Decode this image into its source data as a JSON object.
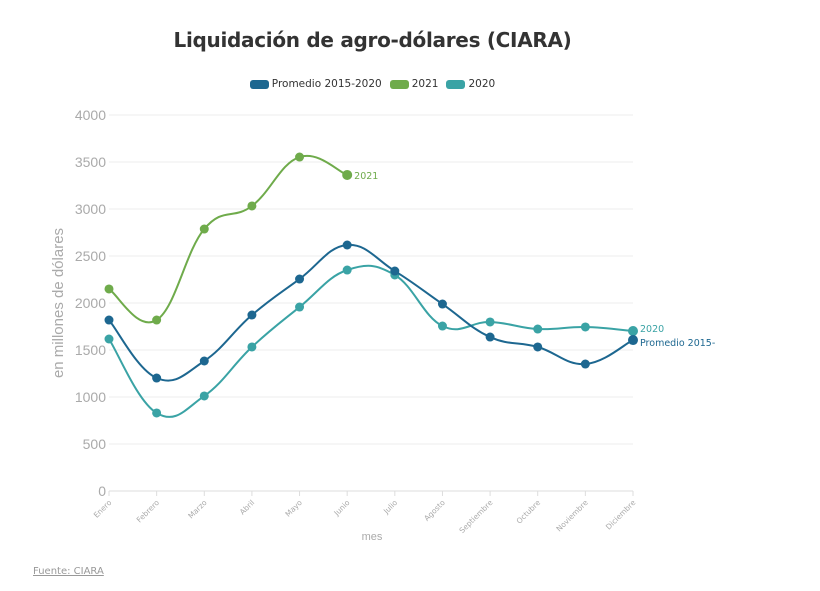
{
  "title": "Liquidación de agro-dólares (CIARA)",
  "source_label": "Fuente: CIARA",
  "chart_data": {
    "type": "line",
    "title": "Liquidación de agro-dólares (CIARA)",
    "xlabel": "mes",
    "ylabel": "en millones de dólares",
    "ylim": [
      0,
      4000
    ],
    "yticks": [
      0,
      500,
      1000,
      1500,
      2000,
      2500,
      3000,
      3500,
      4000
    ],
    "grid": true,
    "legend_position": "top-center",
    "categories": [
      "Enero",
      "Febrero",
      "Marzo",
      "Abril",
      "Mayo",
      "Junio",
      "Julio",
      "Agosto",
      "Septiembre",
      "Octubre",
      "Noviembre",
      "Diciembre"
    ],
    "series": [
      {
        "name": "Promedio 2015-2020",
        "end_label": "Promedio 2015-",
        "color": "#1d6790",
        "values": [
          1819,
          1202,
          1383,
          1872,
          2255,
          2617,
          2340,
          1989,
          1638,
          1532,
          1351,
          1606
        ]
      },
      {
        "name": "2021",
        "end_label": "2021",
        "color": "#6fab4b",
        "values": [
          2149,
          1819,
          2787,
          3032,
          3553,
          3362,
          null,
          null,
          null,
          null,
          null,
          null
        ]
      },
      {
        "name": "2020",
        "end_label": "2020",
        "color": "#3aa3a5",
        "values": [
          1617,
          830,
          1011,
          1532,
          1957,
          2351,
          2298,
          1755,
          1798,
          1723,
          1745,
          1702
        ]
      }
    ]
  }
}
